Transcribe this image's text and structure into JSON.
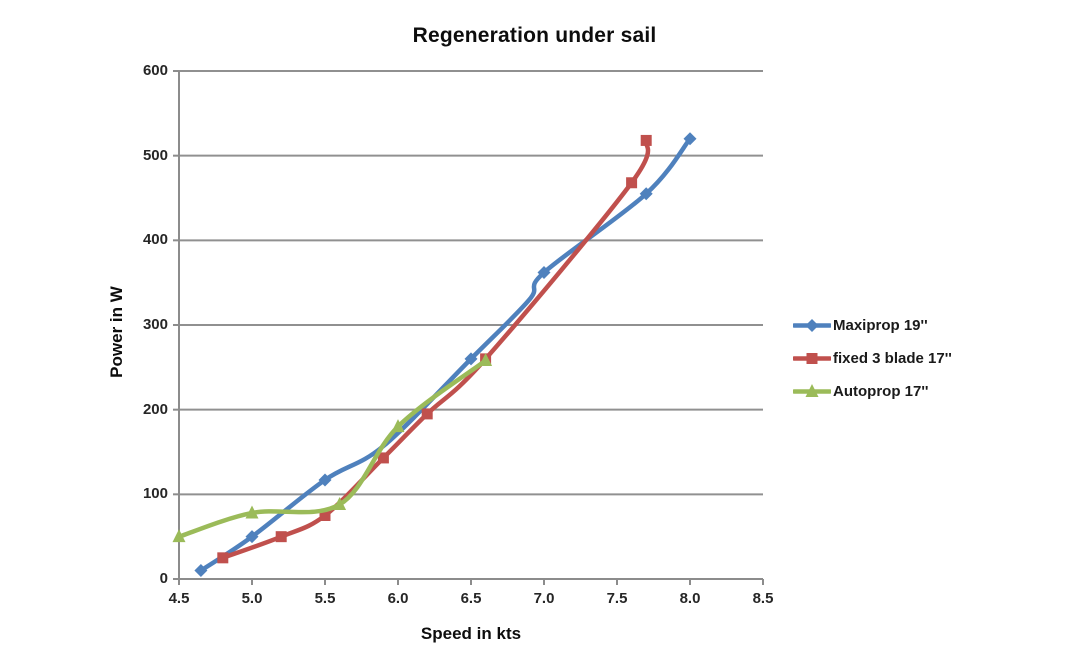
{
  "chart_data": {
    "type": "line",
    "title": "Regeneration under sail",
    "xlabel": "Speed in kts",
    "ylabel": "Power in W",
    "xlim": [
      4.5,
      8.5
    ],
    "ylim": [
      0,
      600
    ],
    "grid": "horizontal-only",
    "legend_position": "right-middle",
    "x_ticks": [
      "4.5",
      "5.0",
      "5.5",
      "6.0",
      "6.5",
      "7.0",
      "7.5",
      "8.0",
      "8.5"
    ],
    "y_ticks": [
      "0",
      "100",
      "200",
      "300",
      "400",
      "500",
      "600"
    ],
    "axis_color": "#8c8c8c",
    "gridline_color": "#909090",
    "series": [
      {
        "name": "Maxiprop 19''",
        "color": "#4F81BD",
        "marker": "diamond",
        "points": [
          {
            "x": 4.65,
            "y": 10,
            "marker": true
          },
          {
            "x": 5.0,
            "y": 50,
            "marker": true
          },
          {
            "x": 5.5,
            "y": 117,
            "marker": true
          },
          {
            "x": 5.9,
            "y": 157,
            "marker": false
          },
          {
            "x": 6.5,
            "y": 260,
            "marker": true
          },
          {
            "x": 6.9,
            "y": 330,
            "marker": false
          },
          {
            "x": 7.0,
            "y": 362,
            "marker": true
          },
          {
            "x": 7.7,
            "y": 455,
            "marker": true
          },
          {
            "x": 8.0,
            "y": 520,
            "marker": true
          }
        ]
      },
      {
        "name": "fixed 3 blade 17''",
        "color": "#C0504D",
        "marker": "square",
        "points": [
          {
            "x": 4.8,
            "y": 25,
            "marker": true
          },
          {
            "x": 5.2,
            "y": 50,
            "marker": true
          },
          {
            "x": 5.5,
            "y": 75,
            "marker": true
          },
          {
            "x": 5.9,
            "y": 143,
            "marker": true
          },
          {
            "x": 6.2,
            "y": 195,
            "marker": true
          },
          {
            "x": 6.6,
            "y": 260,
            "marker": true
          },
          {
            "x": 7.6,
            "y": 468,
            "marker": true
          },
          {
            "x": 7.7,
            "y": 518,
            "marker": true
          }
        ]
      },
      {
        "name": "Autoprop 17''",
        "color": "#9BBB59",
        "marker": "triangle",
        "points": [
          {
            "x": 4.5,
            "y": 50,
            "marker": true
          },
          {
            "x": 5.0,
            "y": 78,
            "marker": true
          },
          {
            "x": 5.6,
            "y": 88,
            "marker": true
          },
          {
            "x": 6.0,
            "y": 180,
            "marker": true
          },
          {
            "x": 6.6,
            "y": 258,
            "marker": true
          }
        ]
      }
    ]
  }
}
